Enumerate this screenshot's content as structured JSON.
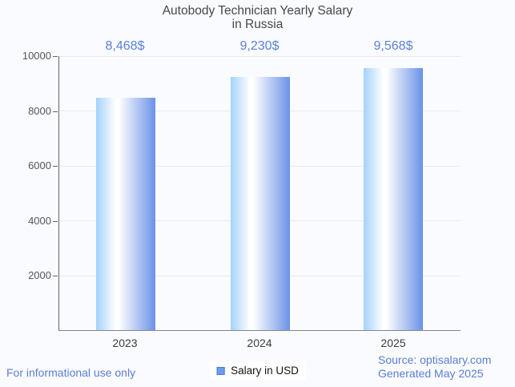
{
  "page": {
    "background_color": "#fafbfe"
  },
  "chart_data": {
    "type": "bar",
    "title": "Autobody Technician Yearly Salary in Russia",
    "title_lines": [
      "Autobody Technician Yearly Salary",
      "in Russia"
    ],
    "categories": [
      "2023",
      "2024",
      "2025"
    ],
    "series": [
      {
        "name": "Salary in USD",
        "values": [
          8468,
          9230,
          9568
        ]
      }
    ],
    "value_labels": [
      "8,468$",
      "9,230$",
      "9,568$"
    ],
    "xlabel": "",
    "ylabel": "",
    "ylim": [
      0,
      10000
    ],
    "yticks": [
      "10000",
      "8000",
      "6000",
      "4000",
      "2000"
    ],
    "grid": true,
    "legend_position": "bottom-center",
    "colors": {
      "bar_gradient_left": "#a4d2fa",
      "bar_gradient_middle": "#ffffff",
      "bar_gradient_right": "#6b92e7",
      "value_label_text": "#5b80d9",
      "title_text": "#47474f",
      "axis_line": "#63636c",
      "gridline": "#e9eaef",
      "tick_label_text": "#55555c",
      "legend_swatch": "#6d9eeb",
      "footer_text": "#5b7dd6"
    }
  },
  "footer": {
    "disclaimer": "For informational use only",
    "source": "Source: optisalary.com",
    "generated": "Generated May 2025"
  }
}
